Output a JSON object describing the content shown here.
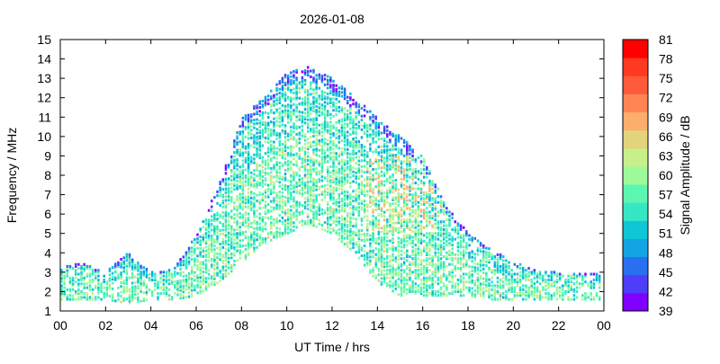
{
  "chart_data": {
    "type": "heatmap",
    "title": "2026-01-08",
    "xlabel": "UT Time / hrs",
    "ylabel": "Frequency / MHz",
    "colorbar_label": "Signal Amplitude / dB",
    "xlim": [
      0,
      24
    ],
    "ylim": [
      1,
      15
    ],
    "x_ticks": [
      "00",
      "02",
      "04",
      "06",
      "08",
      "10",
      "12",
      "14",
      "16",
      "18",
      "20",
      "22",
      "00"
    ],
    "y_ticks": [
      "1",
      "2",
      "3",
      "4",
      "5",
      "6",
      "7",
      "8",
      "9",
      "10",
      "11",
      "12",
      "13",
      "14",
      "15"
    ],
    "colorbar_ticks": [
      "39",
      "42",
      "45",
      "48",
      "51",
      "54",
      "57",
      "60",
      "63",
      "66",
      "69",
      "72",
      "75",
      "78",
      "81"
    ],
    "colorbar_colors": [
      "#7f00ff",
      "#4f3df9",
      "#2a6ff0",
      "#12a4e3",
      "#0fc6d6",
      "#35e8c3",
      "#5cf6b0",
      "#9efa98",
      "#c7f08a",
      "#e3d37a",
      "#fcae6c",
      "#ff8654",
      "#ff5a3a",
      "#ff3a20",
      "#ff0000"
    ],
    "grid": false,
    "band_envelope": [
      {
        "ut": 0,
        "fmin": 1.6,
        "fmax": 3.3
      },
      {
        "ut": 1,
        "fmin": 1.6,
        "fmax": 3.5
      },
      {
        "ut": 2,
        "fmin": 1.6,
        "fmax": 3.0
      },
      {
        "ut": 3,
        "fmin": 1.4,
        "fmax": 4.0
      },
      {
        "ut": 4,
        "fmin": 1.6,
        "fmax": 3.0
      },
      {
        "ut": 5,
        "fmin": 1.6,
        "fmax": 3.2
      },
      {
        "ut": 6,
        "fmin": 1.8,
        "fmax": 5.0
      },
      {
        "ut": 7,
        "fmin": 2.5,
        "fmax": 7.5
      },
      {
        "ut": 8,
        "fmin": 3.5,
        "fmax": 11.0
      },
      {
        "ut": 9,
        "fmin": 4.5,
        "fmax": 12.0
      },
      {
        "ut": 10,
        "fmin": 5.0,
        "fmax": 13.3
      },
      {
        "ut": 11,
        "fmin": 5.5,
        "fmax": 13.6
      },
      {
        "ut": 12,
        "fmin": 5.0,
        "fmax": 13.0
      },
      {
        "ut": 13,
        "fmin": 4.0,
        "fmax": 12.0
      },
      {
        "ut": 14,
        "fmin": 2.5,
        "fmax": 11.0
      },
      {
        "ut": 15,
        "fmin": 1.8,
        "fmax": 10.0
      },
      {
        "ut": 16,
        "fmin": 1.8,
        "fmax": 9.0
      },
      {
        "ut": 17,
        "fmin": 1.8,
        "fmax": 6.5
      },
      {
        "ut": 18,
        "fmin": 1.8,
        "fmax": 5.0
      },
      {
        "ut": 19,
        "fmin": 1.6,
        "fmax": 4.2
      },
      {
        "ut": 20,
        "fmin": 1.6,
        "fmax": 3.5
      },
      {
        "ut": 21,
        "fmin": 1.6,
        "fmax": 3.2
      },
      {
        "ut": 22,
        "fmin": 1.6,
        "fmax": 3.0
      },
      {
        "ut": 23,
        "fmin": 1.6,
        "fmax": 3.0
      },
      {
        "ut": 24,
        "fmin": 1.6,
        "fmax": 3.0
      }
    ]
  }
}
